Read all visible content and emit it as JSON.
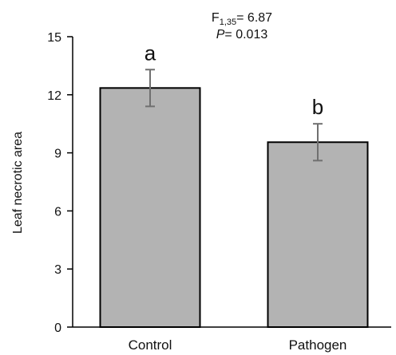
{
  "chart_data": {
    "type": "bar",
    "categories": [
      "Control",
      "Pathogen"
    ],
    "values": [
      12.35,
      9.55
    ],
    "errors": [
      0.95,
      0.95
    ],
    "significance_letters": [
      "a",
      "b"
    ],
    "ylabel": "Leaf necrotic area",
    "xlabel": "",
    "ylim": [
      0,
      15
    ],
    "yticks": [
      "0",
      "3",
      "6",
      "9",
      "12",
      "15"
    ],
    "ytick_values": [
      0,
      3,
      6,
      9,
      12,
      15
    ],
    "grid": false,
    "legend": "none",
    "colors": {
      "bar_fill": "#b3b3b3",
      "bar_stroke": "#000000",
      "error_bar": "#707070"
    },
    "stats": {
      "f_label": "F",
      "f_subscript": "1,35",
      "f_value": "= 6.87",
      "p_label": "P",
      "p_value": "= 0.013"
    }
  }
}
